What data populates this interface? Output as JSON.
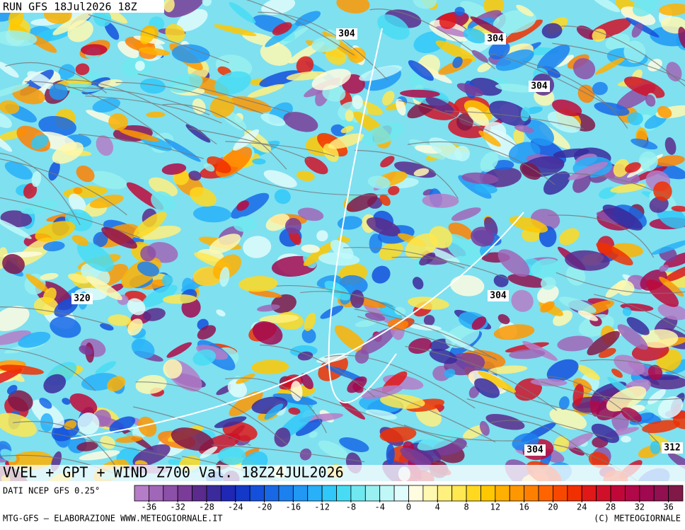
{
  "header": {
    "run": "RUN GFS 18Jul2026 18Z"
  },
  "map": {
    "contour_labels": [
      "304",
      "304",
      "304",
      "304",
      "320",
      "304",
      "312"
    ]
  },
  "title": "VVEL + GPT + WIND Z700 Val. 18Z24JUL2026",
  "source": "DATI NCEP GFS 0.25°",
  "colorbar": {
    "ticks": [
      -36,
      -32,
      -28,
      -24,
      -20,
      -16,
      -12,
      -8,
      -4,
      0,
      4,
      8,
      12,
      16,
      20,
      24,
      28,
      32,
      36
    ],
    "colors": [
      "#b57cc8",
      "#a066b8",
      "#8c50a8",
      "#7a3c98",
      "#5a2a8c",
      "#3a2a9c",
      "#1e28b4",
      "#1438c8",
      "#1450dc",
      "#1868e6",
      "#1c80ee",
      "#2098f4",
      "#28b0f8",
      "#30c8f8",
      "#48dcf4",
      "#70e8f0",
      "#98f0f0",
      "#c0f8f8",
      "#e0fcfc",
      "#fffce0",
      "#fff8b0",
      "#fff080",
      "#ffe850",
      "#ffd820",
      "#ffc800",
      "#ffb000",
      "#ff9800",
      "#ff8000",
      "#ff6400",
      "#f84800",
      "#f03000",
      "#e01818",
      "#d01028",
      "#c00838",
      "#b00848",
      "#a00850",
      "#901050",
      "#801848"
    ]
  },
  "footer": {
    "left": "MTG-GFS — ELABORAZIONE WWW.METEOGIORNALE.IT",
    "right": "(C) METEOGIORNALE"
  }
}
